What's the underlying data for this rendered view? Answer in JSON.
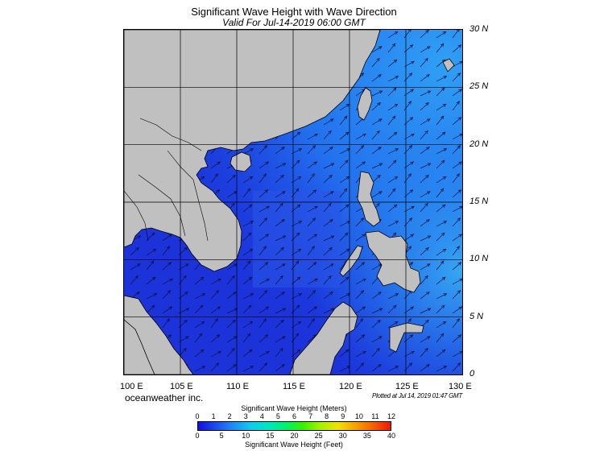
{
  "title": "Significant Wave Height with Wave Direction",
  "subtitle": "Valid For Jul-14-2019 06:00 GMT",
  "map": {
    "region": "South China Sea",
    "lat_labels": [
      "30 N",
      "25 N",
      "20 N",
      "15 N",
      "10 N",
      "5 N",
      "0"
    ],
    "lon_labels": [
      "100 E",
      "105 E",
      "110 E",
      "115 E",
      "120 E",
      "125 E",
      "130 E"
    ],
    "lat_range": [
      0,
      30
    ],
    "lon_range": [
      100,
      130
    ],
    "grid_step_deg": 5,
    "arrow_direction": "toward northeast",
    "colors": {
      "land": "#c0c0c0",
      "coast": "#000000",
      "sea_low": "#1a2bd9",
      "sea_high": "#2f9bf2"
    }
  },
  "credit": "oceanweather inc.",
  "plotted": "Plotted at Jul 14, 2019 01:47 GMT",
  "colorbar": {
    "meters_title": "Significant Wave Height (Meters)",
    "feet_title": "Significant Wave Height (Feet)",
    "meters_ticks": [
      "0",
      "1",
      "2",
      "3",
      "4",
      "5",
      "6",
      "7",
      "8",
      "9",
      "10",
      "11",
      "12"
    ],
    "feet_ticks": [
      "0",
      "5",
      "10",
      "15",
      "20",
      "25",
      "30",
      "35",
      "40"
    ],
    "colors": [
      "#1010e0",
      "#1b4cf0",
      "#1f8cf8",
      "#12c8f0",
      "#00e6c0",
      "#00f070",
      "#38f000",
      "#a8f000",
      "#f0e000",
      "#f8a000",
      "#f86000",
      "#f01800"
    ]
  }
}
